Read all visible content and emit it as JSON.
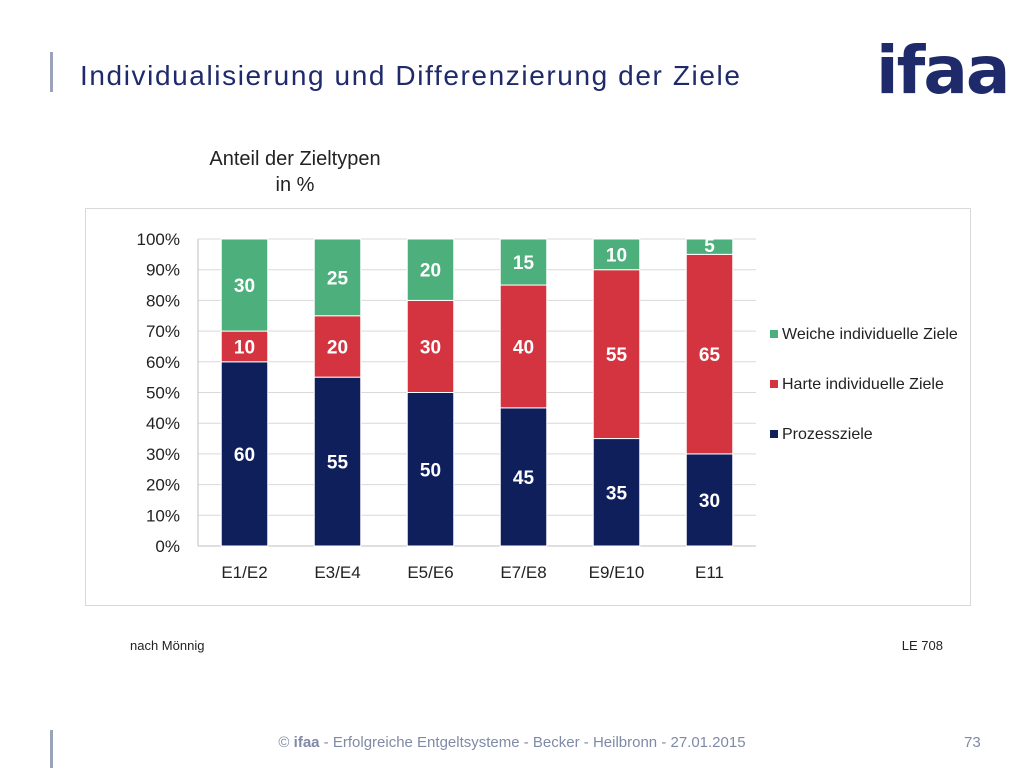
{
  "header": {
    "title": "Individualisierung und Differenzierung der Ziele",
    "logo": "ifaa"
  },
  "chart_data": {
    "type": "bar",
    "stacked": true,
    "title": "Anteil der Zieltypen in %",
    "title_lines": [
      "Anteil der Zieltypen",
      "in %"
    ],
    "categories": [
      "E1/E2",
      "E3/E4",
      "E5/E6",
      "E7/E8",
      "E9/E10",
      "E11"
    ],
    "series": [
      {
        "name": "Prozessziele",
        "values": [
          60,
          55,
          50,
          45,
          35,
          30
        ],
        "color": "#0f1f5c",
        "label_color": "#ffffff"
      },
      {
        "name": "Harte individuelle Ziele",
        "values": [
          10,
          20,
          30,
          40,
          55,
          65
        ],
        "color": "#d3343f",
        "label_color": "#ffffff"
      },
      {
        "name": "Weiche individuelle Ziele",
        "values": [
          30,
          25,
          20,
          15,
          10,
          5
        ],
        "color": "#4daf7c",
        "label_color": "#ffffff"
      }
    ],
    "y_ticks": [
      "0%",
      "10%",
      "20%",
      "30%",
      "40%",
      "50%",
      "60%",
      "70%",
      "80%",
      "90%",
      "100%"
    ],
    "ylim": [
      0,
      100
    ],
    "grid": true,
    "legend": "right"
  },
  "notes": {
    "source": "nach Mönnig",
    "reference": "LE 708"
  },
  "footer": {
    "brand": "ifaa",
    "text": " - Erfolgreiche Entgeltsysteme - Becker - Heilbronn - 27.01.2015",
    "page": "73"
  }
}
